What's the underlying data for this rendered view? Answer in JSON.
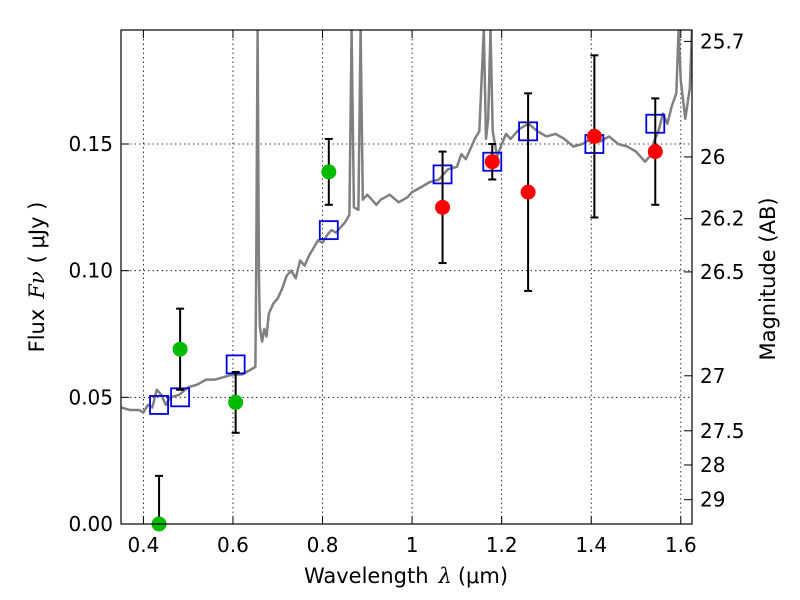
{
  "chart_data": {
    "type": "scatter",
    "xlabel_prefix": "Wavelength",
    "xlabel_symbol": "λ",
    "xlabel_unit": "(μm)",
    "ylabel_prefix": "Flux",
    "ylabel_symbol": "Fν",
    "ylabel_unit": "( μJy )",
    "y2label": "Magnitude (AB)",
    "xlim": [
      0.35,
      1.625
    ],
    "ylim": [
      0.0,
      0.195
    ],
    "x_ticks": [
      0.4,
      0.6,
      0.8,
      1.0,
      1.2,
      1.4,
      1.6
    ],
    "x_tick_labels": [
      "0.4",
      "0.6",
      "0.8",
      "1",
      "1.2",
      "1.4",
      "1.6"
    ],
    "y_ticks": [
      0.0,
      0.05,
      0.1,
      0.15
    ],
    "y_tick_labels": [
      "0.00",
      "0.05",
      "0.10",
      "0.15"
    ],
    "y2_ticks": [
      {
        "label": "25.7",
        "flux": 0.1905
      },
      {
        "label": "26",
        "flux": 0.1449
      },
      {
        "label": "26.2",
        "flux": 0.1205
      },
      {
        "label": "26.5",
        "flux": 0.0995
      },
      {
        "label": "27",
        "flux": 0.0585
      },
      {
        "label": "27.5",
        "flux": 0.0368
      },
      {
        "label": "28",
        "flux": 0.0233
      },
      {
        "label": "29",
        "flux": 0.0096
      }
    ],
    "grid": true,
    "colors": {
      "model": "#808080",
      "green": "#00bb00",
      "red": "#ff0000",
      "square": "#0000dd",
      "errorbar": "#000000"
    },
    "model_spectrum": [
      [
        0.35,
        0.046
      ],
      [
        0.37,
        0.045
      ],
      [
        0.39,
        0.045
      ],
      [
        0.4,
        0.044
      ],
      [
        0.41,
        0.047
      ],
      [
        0.42,
        0.046
      ],
      [
        0.43,
        0.053
      ],
      [
        0.44,
        0.051
      ],
      [
        0.45,
        0.047
      ],
      [
        0.46,
        0.05
      ],
      [
        0.48,
        0.051
      ],
      [
        0.5,
        0.054
      ],
      [
        0.52,
        0.055
      ],
      [
        0.54,
        0.057
      ],
      [
        0.56,
        0.057
      ],
      [
        0.58,
        0.058
      ],
      [
        0.6,
        0.059
      ],
      [
        0.62,
        0.059
      ],
      [
        0.64,
        0.061
      ],
      [
        0.65,
        0.062
      ],
      [
        0.652,
        0.1
      ],
      [
        0.655,
        0.195
      ],
      [
        0.658,
        0.1
      ],
      [
        0.66,
        0.078
      ],
      [
        0.665,
        0.072
      ],
      [
        0.67,
        0.077
      ],
      [
        0.675,
        0.074
      ],
      [
        0.68,
        0.083
      ],
      [
        0.69,
        0.087
      ],
      [
        0.7,
        0.089
      ],
      [
        0.71,
        0.093
      ],
      [
        0.72,
        0.098
      ],
      [
        0.73,
        0.1
      ],
      [
        0.74,
        0.097
      ],
      [
        0.75,
        0.104
      ],
      [
        0.76,
        0.102
      ],
      [
        0.77,
        0.106
      ],
      [
        0.78,
        0.109
      ],
      [
        0.79,
        0.112
      ],
      [
        0.8,
        0.111
      ],
      [
        0.81,
        0.114
      ],
      [
        0.82,
        0.116
      ],
      [
        0.83,
        0.115
      ],
      [
        0.84,
        0.117
      ],
      [
        0.85,
        0.119
      ],
      [
        0.86,
        0.122
      ],
      [
        0.865,
        0.195
      ],
      [
        0.87,
        0.125
      ],
      [
        0.88,
        0.124
      ],
      [
        0.885,
        0.195
      ],
      [
        0.89,
        0.128
      ],
      [
        0.9,
        0.13
      ],
      [
        0.91,
        0.128
      ],
      [
        0.92,
        0.126
      ],
      [
        0.93,
        0.128
      ],
      [
        0.95,
        0.13
      ],
      [
        0.97,
        0.127
      ],
      [
        0.99,
        0.129
      ],
      [
        1.0,
        0.131
      ],
      [
        1.02,
        0.133
      ],
      [
        1.04,
        0.135
      ],
      [
        1.06,
        0.136
      ],
      [
        1.08,
        0.14
      ],
      [
        1.1,
        0.141
      ],
      [
        1.11,
        0.146
      ],
      [
        1.12,
        0.144
      ],
      [
        1.13,
        0.148
      ],
      [
        1.14,
        0.152
      ],
      [
        1.15,
        0.155
      ],
      [
        1.16,
        0.195
      ],
      [
        1.165,
        0.152
      ],
      [
        1.17,
        0.16
      ],
      [
        1.175,
        0.195
      ],
      [
        1.18,
        0.155
      ],
      [
        1.19,
        0.145
      ],
      [
        1.2,
        0.15
      ],
      [
        1.21,
        0.154
      ],
      [
        1.22,
        0.152
      ],
      [
        1.24,
        0.156
      ],
      [
        1.26,
        0.158
      ],
      [
        1.28,
        0.155
      ],
      [
        1.3,
        0.153
      ],
      [
        1.32,
        0.154
      ],
      [
        1.34,
        0.152
      ],
      [
        1.36,
        0.149
      ],
      [
        1.38,
        0.15
      ],
      [
        1.4,
        0.152
      ],
      [
        1.42,
        0.151
      ],
      [
        1.44,
        0.153
      ],
      [
        1.46,
        0.15
      ],
      [
        1.48,
        0.149
      ],
      [
        1.5,
        0.147
      ],
      [
        1.52,
        0.143
      ],
      [
        1.53,
        0.145
      ],
      [
        1.54,
        0.151
      ],
      [
        1.55,
        0.155
      ],
      [
        1.56,
        0.162
      ],
      [
        1.57,
        0.158
      ],
      [
        1.58,
        0.165
      ],
      [
        1.59,
        0.17
      ],
      [
        1.595,
        0.195
      ],
      [
        1.6,
        0.175
      ],
      [
        1.61,
        0.16
      ],
      [
        1.62,
        0.172
      ],
      [
        1.625,
        0.195
      ]
    ],
    "green_points": [
      {
        "x": 0.435,
        "y": 0.0,
        "err_lo": 0.0,
        "err_hi": 0.019
      },
      {
        "x": 0.482,
        "y": 0.069,
        "err_lo": 0.053,
        "err_hi": 0.085
      },
      {
        "x": 0.606,
        "y": 0.048,
        "err_lo": 0.036,
        "err_hi": 0.06
      },
      {
        "x": 0.814,
        "y": 0.139,
        "err_lo": 0.126,
        "err_hi": 0.152
      }
    ],
    "red_points": [
      {
        "x": 1.068,
        "y": 0.125,
        "err_lo": 0.103,
        "err_hi": 0.147
      },
      {
        "x": 1.179,
        "y": 0.143,
        "err_lo": 0.136,
        "err_hi": 0.15
      },
      {
        "x": 1.259,
        "y": 0.131,
        "err_lo": 0.092,
        "err_hi": 0.17
      },
      {
        "x": 1.407,
        "y": 0.153,
        "err_lo": 0.121,
        "err_hi": 0.185
      },
      {
        "x": 1.543,
        "y": 0.147,
        "err_lo": 0.126,
        "err_hi": 0.168
      }
    ],
    "model_squares": [
      {
        "x": 0.435,
        "y": 0.047
      },
      {
        "x": 0.482,
        "y": 0.05
      },
      {
        "x": 0.606,
        "y": 0.063
      },
      {
        "x": 0.814,
        "y": 0.116
      },
      {
        "x": 1.068,
        "y": 0.138
      },
      {
        "x": 1.179,
        "y": 0.143
      },
      {
        "x": 1.259,
        "y": 0.155
      },
      {
        "x": 1.407,
        "y": 0.15
      },
      {
        "x": 1.543,
        "y": 0.158
      }
    ]
  }
}
